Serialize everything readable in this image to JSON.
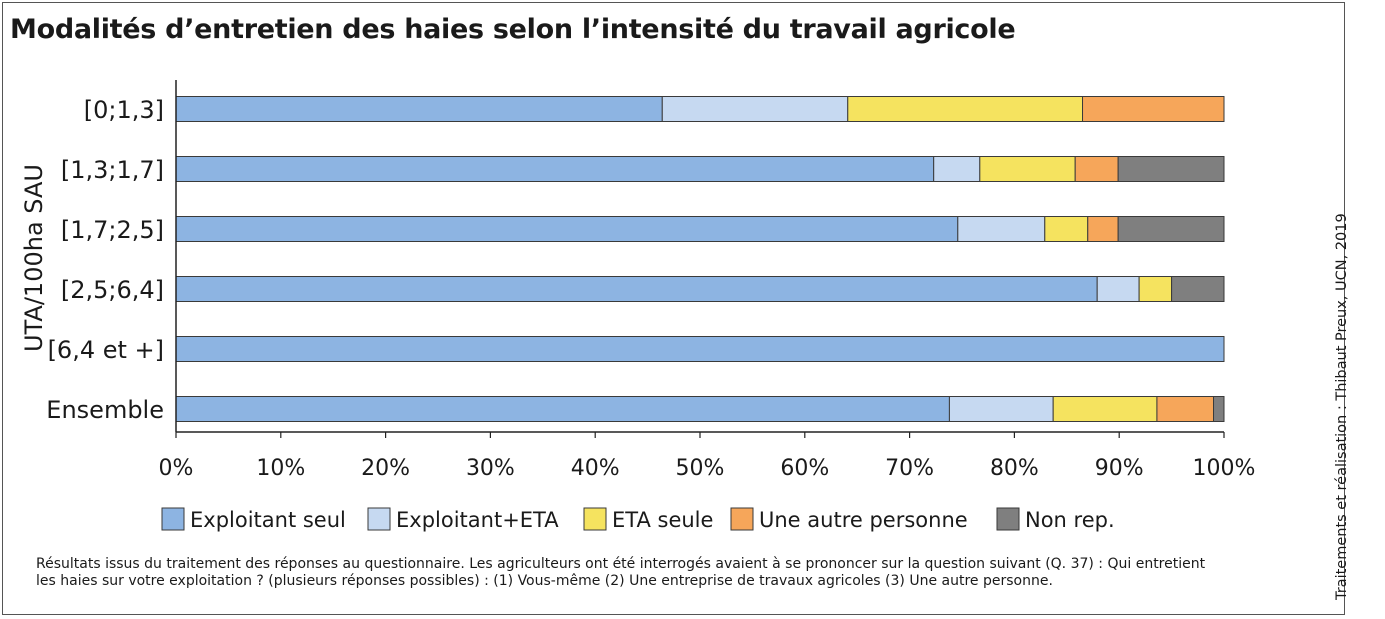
{
  "title": "Modalités d’entretien des haies selon l’intensité du travail agricole",
  "credit": "Traitements et réalisation : Thibaut Preux, UCN, 2019",
  "note": {
    "line1": "Résultats issus du traitement des réponses au questionnaire. Les agriculteurs ont été interrogés avaient à se prononcer sur la question suivant (Q. 37) : Qui entretient",
    "line2": "les haies sur votre exploitation ? (plusieurs réponses possibles) : (1) Vous-même (2) Une entreprise de travaux agricoles (3) Une autre personne."
  },
  "chart_data": {
    "type": "bar",
    "orientation": "horizontal",
    "stacked": "percent",
    "title": "Modalités d’entretien des haies selon l’intensité du travail agricole",
    "xlabel": "",
    "ylabel": "UTA/100ha SAU",
    "xlim": [
      0,
      100
    ],
    "xticks": [
      "0%",
      "10%",
      "20%",
      "30%",
      "40%",
      "50%",
      "60%",
      "70%",
      "80%",
      "90%",
      "100%"
    ],
    "grid": false,
    "legend_position": "bottom",
    "categories": [
      "[0;1,3]",
      "[1,3;1,7]",
      "[1,7;2,5]",
      "[2,5;6,4]",
      "[6,4 et +]",
      "Ensemble"
    ],
    "series": [
      {
        "name": "Exploitant seul",
        "color": "#8db4e2",
        "values": [
          46.4,
          72.3,
          74.6,
          87.9,
          100,
          73.8
        ]
      },
      {
        "name": "Exploitant+ETA",
        "color": "#c6d9f1",
        "values": [
          17.7,
          4.4,
          8.3,
          4.0,
          0,
          9.9
        ]
      },
      {
        "name": "ETA seule",
        "color": "#f5e35f",
        "values": [
          22.4,
          9.1,
          4.1,
          3.1,
          0,
          9.9
        ]
      },
      {
        "name": "Une autre personne",
        "color": "#f6a65a",
        "values": [
          13.5,
          4.1,
          2.9,
          0,
          0,
          5.4
        ]
      },
      {
        "name": "Non rep.",
        "color": "#7f7f7f",
        "values": [
          0,
          10.1,
          10.1,
          5.0,
          0,
          1.0
        ]
      }
    ]
  }
}
